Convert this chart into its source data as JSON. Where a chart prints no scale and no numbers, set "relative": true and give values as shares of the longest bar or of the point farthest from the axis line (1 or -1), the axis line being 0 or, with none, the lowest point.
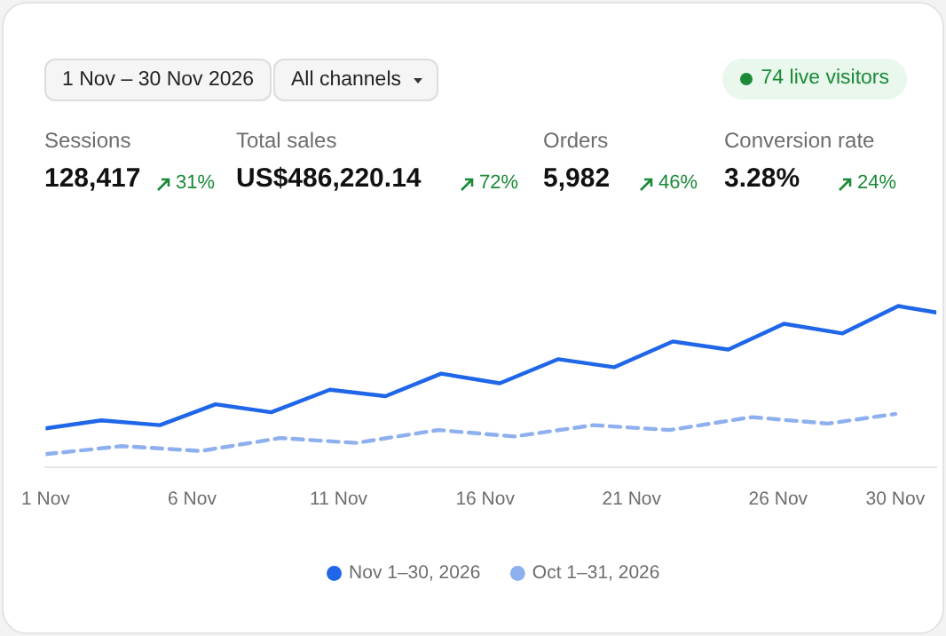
{
  "chart_data": [
    {
      "type": "other",
      "annotations": [
        "1 Nov – 30 Nov 2026",
        "All channels",
        "74 live visitors",
        "Sessions",
        "128,417",
        "31%",
        "Total sales",
        "US$486,220.14",
        "72%",
        "Orders",
        "5,982",
        "46%",
        "Conversion rate",
        "3.28%",
        "24%"
      ]
    },
    {
      "type": "line",
      "relative": true,
      "legend": "bottom",
      "marker": "none",
      "xlim": [
        "2026-11-01",
        "2026-12-01T09:36"
      ],
      "xticks": [
        {
          "value": "2026-11-01",
          "label": "1 Nov"
        },
        {
          "value": "2026-11-06",
          "label": "6 Nov"
        },
        {
          "value": "2026-11-11",
          "label": "11 Nov"
        },
        {
          "value": "2026-11-16",
          "label": "16 Nov"
        },
        {
          "value": "2026-11-21",
          "label": "21 Nov"
        },
        {
          "value": "2026-11-26",
          "label": "26 Nov"
        },
        {
          "value": "2026-11-30",
          "label": "30 Nov"
        }
      ],
      "series": [
        {
          "name": "Nov 1–30, 2026",
          "color": "#1f66e8",
          "line_style": "solid",
          "x": [
            "2026-11-01",
            "2026-11-02T21:36",
            "2026-11-04T21:36",
            "2026-11-06T19:12",
            "2026-11-08T16:48",
            "2026-11-10T16:48",
            "2026-11-12T14:24",
            "2026-11-14T12:00",
            "2026-11-16T12:00",
            "2026-11-18T12:00",
            "2026-11-20T09:36",
            "2026-11-22T09:36",
            "2026-11-24T07:12",
            "2026-11-26T04:48",
            "2026-11-28T04:48",
            "2026-11-30T02:24",
            "2026-12-01T09:36"
          ],
          "values": [
            0.24,
            0.29,
            0.26,
            0.39,
            0.34,
            0.48,
            0.44,
            0.58,
            0.52,
            0.67,
            0.62,
            0.78,
            0.73,
            0.89,
            0.83,
            1,
            0.96
          ]
        },
        {
          "name": "Oct 1–31, 2026",
          "color": "#8fb0ee",
          "line_style": "dashed",
          "x": [
            "2026-11-01",
            "2026-11-03T14:24",
            "2026-11-06T07:12",
            "2026-11-09",
            "2026-11-11T14:24",
            "2026-11-14T09:36",
            "2026-11-17",
            "2026-11-19T16:48",
            "2026-11-22T07:12",
            "2026-11-25T02:24",
            "2026-11-27T16:48",
            "2026-11-30"
          ],
          "values": [
            0.08,
            0.13,
            0.1,
            0.18,
            0.15,
            0.23,
            0.19,
            0.26,
            0.23,
            0.31,
            0.27,
            0.33
          ]
        }
      ]
    }
  ]
}
